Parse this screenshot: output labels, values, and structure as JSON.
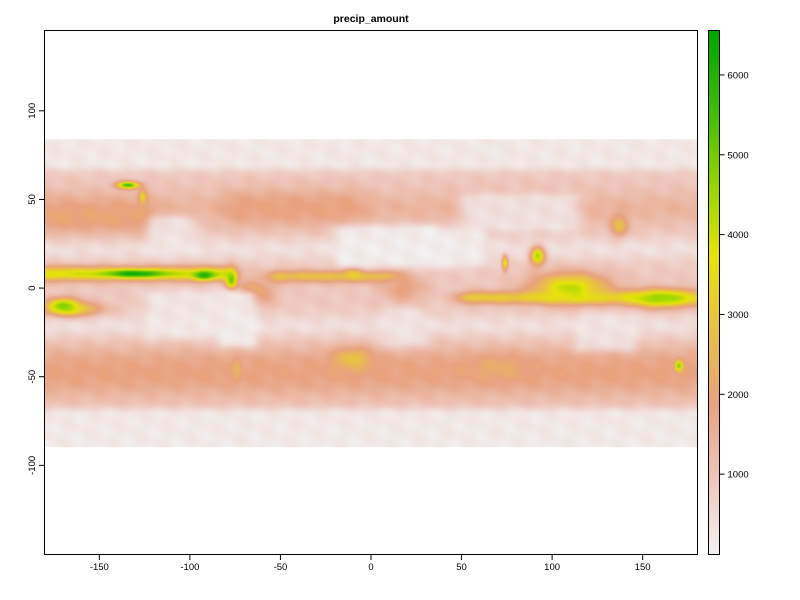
{
  "chart_data": {
    "type": "heatmap",
    "title": "precip_amount",
    "xlabel": "",
    "ylabel": "",
    "xlim": [
      -180,
      180
    ],
    "ylim": [
      -150,
      145
    ],
    "data_extent": {
      "x": [
        -180,
        180
      ],
      "y": [
        -90,
        84
      ]
    },
    "x_ticks": [
      -150,
      -100,
      -50,
      0,
      50,
      100,
      150
    ],
    "x_tick_labels": [
      "-150",
      "-100",
      "-50",
      "0",
      "50",
      "100",
      "150"
    ],
    "y_ticks": [
      -100,
      -50,
      0,
      50,
      100
    ],
    "y_tick_labels": [
      "-100",
      "-50",
      "0",
      "50",
      "100"
    ],
    "colorbar": {
      "min": 0,
      "max": 6550,
      "ticks": [
        1000,
        2000,
        3000,
        4000,
        5000,
        6000
      ],
      "tick_labels": [
        "1000",
        "2000",
        "3000",
        "4000",
        "5000",
        "6000"
      ],
      "colors": [
        "#f2f2f2",
        "#eec7bd",
        "#e8a27f",
        "#e9c047",
        "#e6e30a",
        "#8fd400",
        "#3bb90b",
        "#00a600"
      ]
    },
    "features": [
      {
        "name": "itcz-pacific",
        "type": "band",
        "lon": [
          -180,
          -82
        ],
        "lat": [
          4,
          12
        ],
        "value": 4200
      },
      {
        "name": "itcz-pacific-core",
        "type": "blob",
        "lon": -130,
        "lat": 8,
        "rx": 16,
        "ry": 2,
        "value": 6300
      },
      {
        "name": "panama-max",
        "type": "blob",
        "lon": -92,
        "lat": 7,
        "rx": 6,
        "ry": 2.5,
        "value": 6000
      },
      {
        "name": "itcz-atlantic",
        "type": "band",
        "lon": [
          -50,
          10
        ],
        "lat": [
          3,
          10
        ],
        "value": 3000
      },
      {
        "name": "indian-ocean-south",
        "type": "band",
        "lon": [
          55,
          180
        ],
        "lat": [
          -9,
          -2
        ],
        "value": 3300
      },
      {
        "name": "maritime-continent",
        "type": "blob",
        "lon": 110,
        "lat": 0,
        "rx": 20,
        "ry": 8,
        "value": 4200
      },
      {
        "name": "western-pacific-warm-pool",
        "type": "blob",
        "lon": 160,
        "lat": -6,
        "rx": 18,
        "ry": 5,
        "value": 4600
      },
      {
        "name": "spcz",
        "type": "blob",
        "lon": -165,
        "lat": -12,
        "rx": 15,
        "ry": 4,
        "value": 3400
      },
      {
        "name": "sw-pacific",
        "type": "blob",
        "lon": -170,
        "lat": -10,
        "rx": 8,
        "ry": 4,
        "value": 4800
      },
      {
        "name": "bay-of-bengal",
        "type": "blob",
        "lon": 92,
        "lat": 18,
        "rx": 4,
        "ry": 5,
        "value": 4300
      },
      {
        "name": "western-ghats",
        "type": "blob",
        "lon": 74,
        "lat": 14,
        "rx": 1.5,
        "ry": 4,
        "value": 3800
      },
      {
        "name": "colombia-choco",
        "type": "blob",
        "lon": -77,
        "lat": 4,
        "rx": 3,
        "ry": 6,
        "value": 5200
      },
      {
        "name": "amazon-west",
        "type": "blob",
        "lon": -65,
        "lat": -3,
        "rx": 10,
        "ry": 7,
        "value": 2700
      },
      {
        "name": "congo",
        "type": "blob",
        "lon": 18,
        "lat": 0,
        "rx": 12,
        "ry": 8,
        "value": 1900
      },
      {
        "name": "guinea-coast",
        "type": "blob",
        "lon": -10,
        "lat": 8,
        "rx": 5,
        "ry": 3,
        "value": 3200
      },
      {
        "name": "chile-south",
        "type": "blob",
        "lon": -74,
        "lat": -47,
        "rx": 2,
        "ry": 5,
        "value": 5800
      },
      {
        "name": "alaska-se",
        "type": "blob",
        "lon": -134,
        "lat": 58,
        "rx": 6,
        "ry": 2,
        "value": 5600
      },
      {
        "name": "bc-coast",
        "type": "blob",
        "lon": -126,
        "lat": 51,
        "rx": 2,
        "ry": 4,
        "value": 3800
      },
      {
        "name": "north-pacific-storm-track",
        "type": "band",
        "lon": [
          -180,
          -125
        ],
        "lat": [
          30,
          50
        ],
        "value": 2100
      },
      {
        "name": "north-atlantic-storm-track",
        "type": "band",
        "lon": [
          -75,
          -10
        ],
        "lat": [
          35,
          55
        ],
        "value": 1900
      },
      {
        "name": "southern-ocean-storm-track",
        "type": "band",
        "lon": [
          -180,
          180
        ],
        "lat": [
          -62,
          -35
        ],
        "value": 1900
      },
      {
        "name": "south-atlantic-high",
        "type": "blob",
        "lon": -10,
        "lat": -40,
        "rx": 10,
        "ry": 6,
        "value": 2900
      },
      {
        "name": "indian-ocean-high",
        "type": "blob",
        "lon": 70,
        "lat": -45,
        "rx": 15,
        "ry": 7,
        "value": 2200
      },
      {
        "name": "new-zealand",
        "type": "blob",
        "lon": 170,
        "lat": -44,
        "rx": 2,
        "ry": 3,
        "value": 4800
      },
      {
        "name": "japan",
        "type": "blob",
        "lon": 137,
        "lat": 35,
        "rx": 5,
        "ry": 6,
        "value": 2700
      },
      {
        "name": "sahara",
        "type": "dry",
        "lon": [
          -15,
          35
        ],
        "lat": [
          15,
          32
        ],
        "value": 50
      },
      {
        "name": "arabia",
        "type": "dry",
        "lon": [
          35,
          58
        ],
        "lat": [
          15,
          30
        ],
        "value": 80
      },
      {
        "name": "central-asia",
        "type": "dry",
        "lon": [
          55,
          110
        ],
        "lat": [
          35,
          50
        ],
        "value": 250
      },
      {
        "name": "sw-north-america",
        "type": "dry",
        "lon": [
          -118,
          -102
        ],
        "lat": [
          22,
          37
        ],
        "value": 250
      },
      {
        "name": "atacama",
        "type": "dry",
        "lon": [
          -80,
          -68
        ],
        "lat": [
          -30,
          -5
        ],
        "value": 40
      },
      {
        "name": "namib-kalahari",
        "type": "dry",
        "lon": [
          12,
          25
        ],
        "lat": [
          -30,
          -15
        ],
        "value": 300
      },
      {
        "name": "australia-interior",
        "type": "dry",
        "lon": [
          118,
          142
        ],
        "lat": [
          -32,
          -18
        ],
        "value": 300
      },
      {
        "name": "east-pacific-dry",
        "type": "dry",
        "lon": [
          -120,
          -80
        ],
        "lat": [
          -25,
          -5
        ],
        "value": 200
      },
      {
        "name": "arctic",
        "type": "dry",
        "lon": [
          -180,
          180
        ],
        "lat": [
          70,
          84
        ],
        "value": 150
      },
      {
        "name": "antarctica",
        "type": "dry",
        "lon": [
          -180,
          180
        ],
        "lat": [
          -90,
          -72
        ],
        "value": 120
      }
    ]
  }
}
